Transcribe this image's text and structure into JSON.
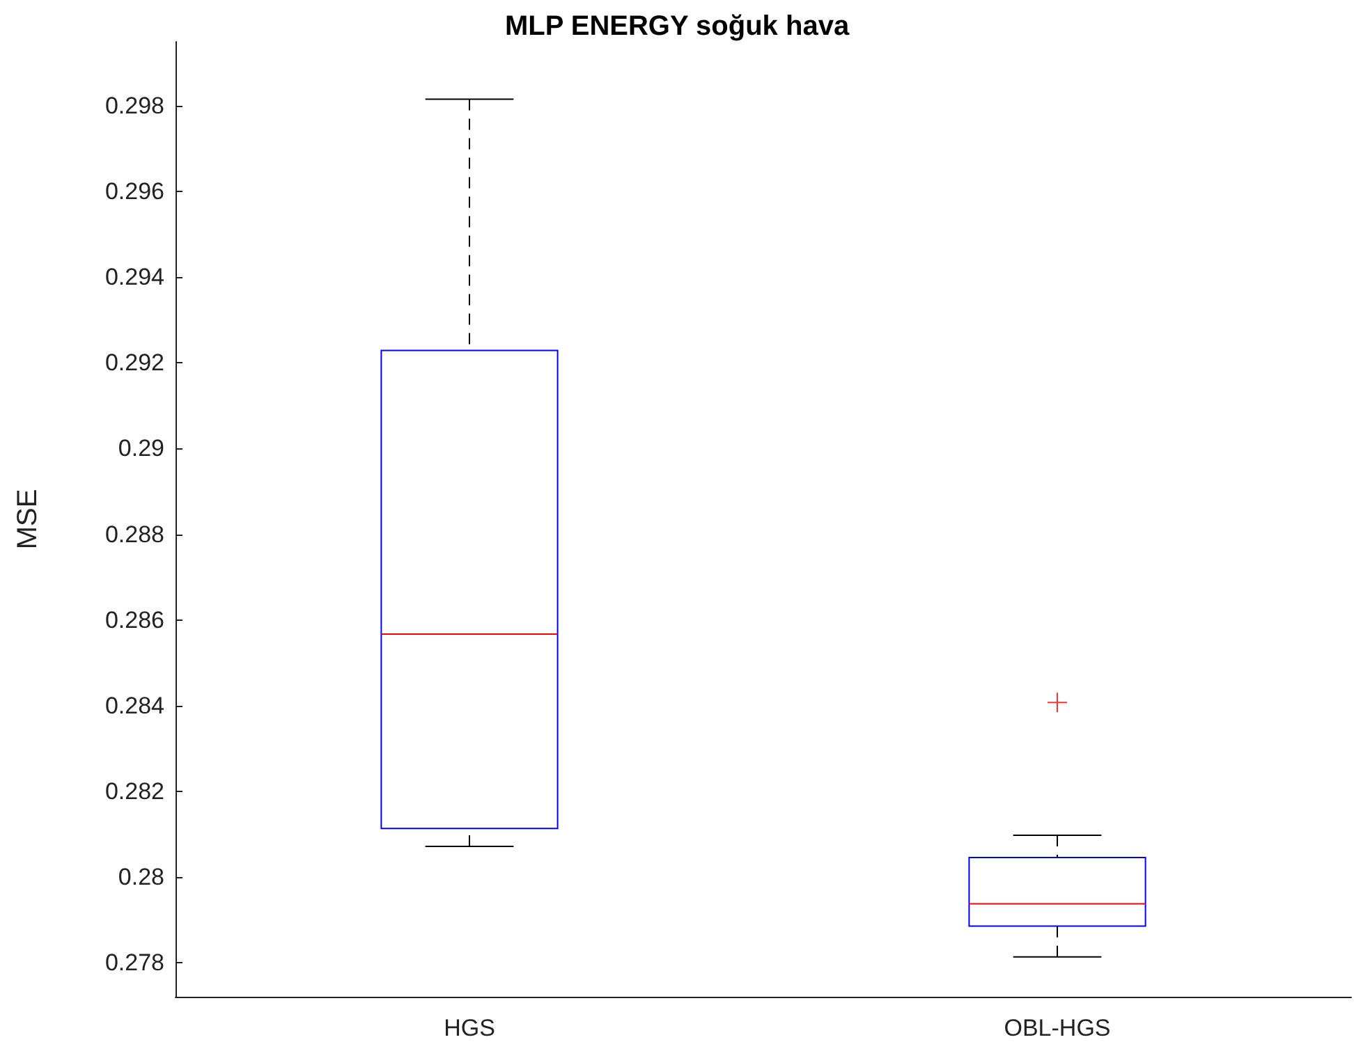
{
  "chart_data": {
    "type": "box",
    "title": "MLP ENERGY soğuk hava",
    "ylabel": "MSE",
    "categories": [
      "HGS",
      "OBL-HGS"
    ],
    "boxes": [
      {
        "low": 0.28071,
        "q1": 0.28113,
        "median": 0.28567,
        "q3": 0.29229,
        "high": 0.29816
      },
      {
        "low": 0.27813,
        "q1": 0.27885,
        "median": 0.27937,
        "q3": 0.28045,
        "high": 0.28097,
        "outliers": [
          0.28407
        ]
      }
    ],
    "color": "#0000ff",
    "ylim": [
      0.2772,
      0.2995
    ],
    "yticks": [
      0.278,
      0.28,
      0.282,
      0.284,
      0.286,
      0.288,
      0.29,
      0.292,
      0.294,
      0.296,
      0.298
    ]
  }
}
